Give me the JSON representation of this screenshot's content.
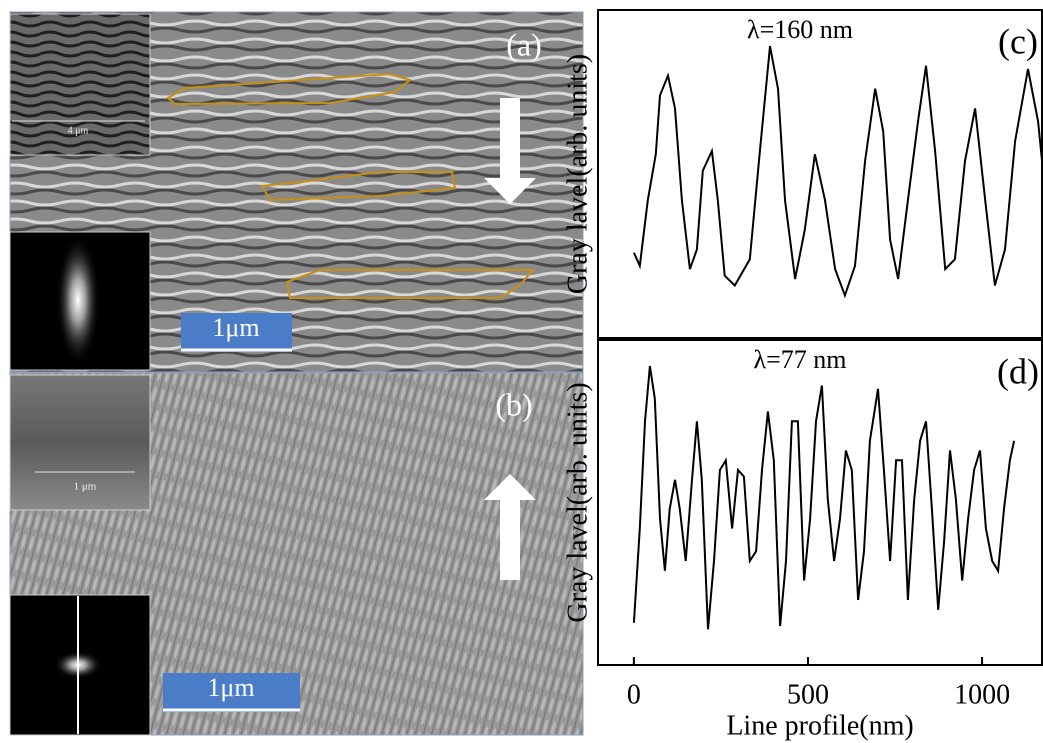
{
  "images": [
    {
      "label": "(a)",
      "scale_bar": "1μm",
      "inset_scale": "4 μm"
    },
    {
      "label": "(b)",
      "scale_bar": "1μm",
      "inset_scale": "1 μm"
    }
  ],
  "chart_data": [
    {
      "type": "line",
      "annotations": [
        "λ=160 nm",
        "(c)"
      ],
      "ylabel": "Gray lavel(arb. units)",
      "color": "#000000",
      "xlim": [
        -103,
        1175
      ],
      "ylim": [
        0,
        100
      ],
      "x": [
        0,
        17,
        40,
        63,
        75,
        98,
        118,
        138,
        161,
        181,
        198,
        224,
        241,
        261,
        290,
        333,
        362,
        391,
        414,
        434,
        463,
        491,
        520,
        549,
        578,
        606,
        635,
        664,
        693,
        716,
        736,
        759,
        787,
        816,
        839,
        865,
        894,
        922,
        951,
        980,
        1009,
        1037,
        1066,
        1095,
        1132,
        1161,
        1175
      ],
      "values": [
        26,
        22,
        42,
        56,
        74,
        80,
        70,
        42,
        21,
        27,
        51,
        57,
        42,
        19,
        16,
        24,
        57,
        89,
        76,
        42,
        18,
        33,
        56,
        42,
        21,
        13,
        22,
        54,
        76,
        63,
        30,
        18,
        42,
        66,
        83,
        57,
        21,
        24,
        54,
        70,
        42,
        16,
        27,
        60,
        82,
        66,
        51
      ]
    },
    {
      "type": "line",
      "annotations": [
        "λ=77 nm",
        "(d)"
      ],
      "ylabel": "Gray lavel(arb. units)",
      "xlabel": "Line profile(nm)",
      "color": "#000000",
      "xlim": [
        -103,
        1175
      ],
      "ylim": [
        0,
        100
      ],
      "xticks": [
        0,
        500,
        1000
      ],
      "x": [
        0,
        17,
        32,
        46,
        60,
        75,
        89,
        103,
        118,
        132,
        149,
        167,
        181,
        195,
        213,
        230,
        247,
        264,
        282,
        299,
        316,
        333,
        351,
        368,
        385,
        402,
        420,
        437,
        454,
        471,
        489,
        506,
        523,
        540,
        557,
        575,
        592,
        609,
        626,
        644,
        661,
        678,
        701,
        718,
        736,
        753,
        770,
        787,
        805,
        822,
        839,
        856,
        874,
        891,
        908,
        925,
        943,
        960,
        977,
        994,
        1011,
        1029,
        1046,
        1063,
        1080,
        1092
      ],
      "values": [
        13,
        42,
        75,
        92,
        82,
        45,
        29,
        48,
        57,
        48,
        32,
        57,
        75,
        57,
        11,
        32,
        60,
        63,
        42,
        60,
        58,
        32,
        35,
        60,
        78,
        63,
        12,
        32,
        75,
        75,
        26,
        45,
        75,
        86,
        51,
        32,
        45,
        66,
        60,
        20,
        35,
        69,
        85,
        60,
        32,
        63,
        63,
        20,
        51,
        69,
        75,
        48,
        17,
        38,
        66,
        51,
        26,
        45,
        60,
        66,
        42,
        32,
        29,
        48,
        63,
        69
      ]
    }
  ]
}
